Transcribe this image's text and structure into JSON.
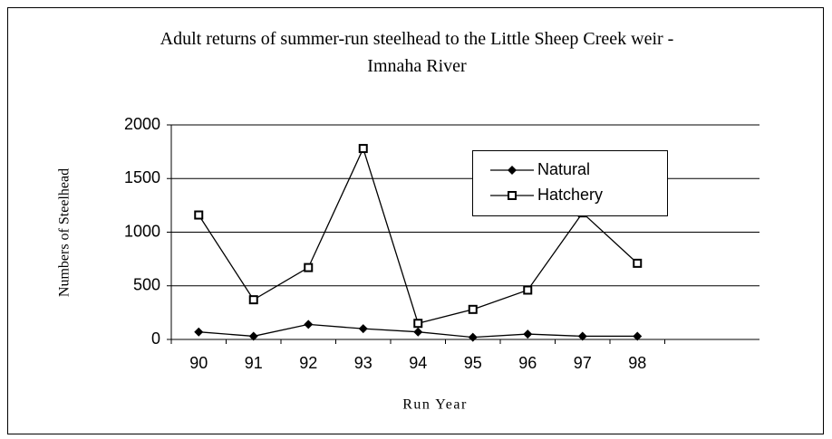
{
  "chart_data": {
    "type": "line",
    "title": "Adult returns of summer-run steelhead to the Little Sheep Creek weir - Imnaha River",
    "x_label": "Run Year",
    "y_label": "Numbers of Steelhead",
    "categories": [
      "90",
      "91",
      "92",
      "93",
      "94",
      "95",
      "96",
      "97",
      "98"
    ],
    "series": [
      {
        "name": "Natural",
        "color": "#000000",
        "marker": "diamond",
        "values": [
          70,
          30,
          140,
          100,
          70,
          20,
          50,
          30,
          30
        ]
      },
      {
        "name": "Hatchery",
        "color": "#000000",
        "marker": "square",
        "values": [
          1160,
          370,
          670,
          1780,
          150,
          280,
          460,
          1180,
          710
        ]
      }
    ],
    "ylim": [
      0,
      2000
    ],
    "yticks": [
      0,
      500,
      1000,
      1500,
      2000
    ],
    "grid": true,
    "legend": "top-right"
  }
}
